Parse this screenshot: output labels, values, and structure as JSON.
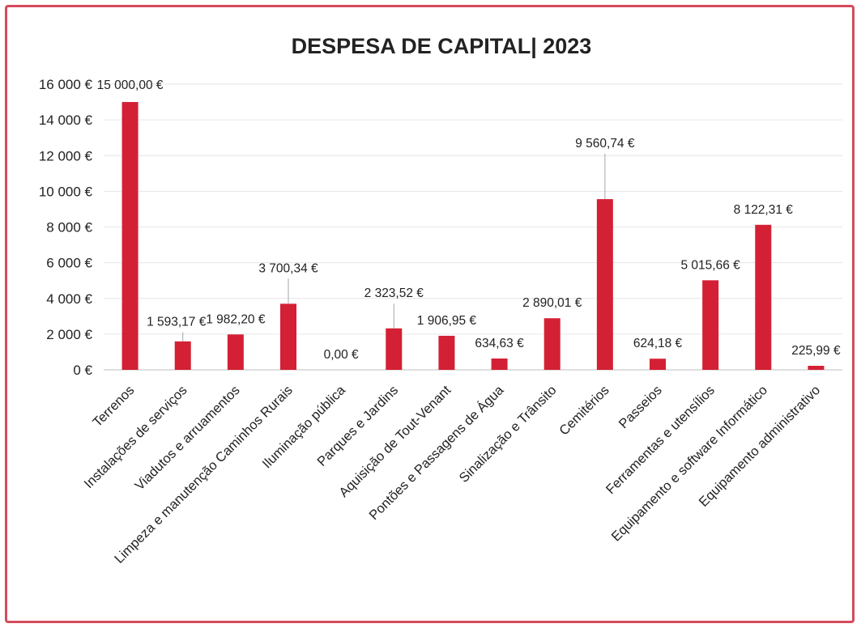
{
  "chart_data": {
    "type": "bar",
    "title": "DESPESA DE CAPITAL| 2023",
    "xlabel": "",
    "ylabel": "",
    "ylim": [
      0,
      16000
    ],
    "yticks": [
      0,
      2000,
      4000,
      6000,
      8000,
      10000,
      12000,
      14000,
      16000
    ],
    "ytick_labels": [
      "0 €",
      "2 000 €",
      "4 000 €",
      "6 000 €",
      "8 000 €",
      "10 000 €",
      "12 000 €",
      "14 000 €",
      "16 000 €"
    ],
    "grid": true,
    "legend": "none",
    "bar_color": "#d42034",
    "categories": [
      "Terrenos",
      "Instalações de serviços",
      "Viadutos e arruamentos",
      "Limpeza e manutenção Caminhos Rurais",
      "Iluminação pública",
      "Parques e Jardins",
      "Aquisição de Tout-Venant",
      "Pontões e Passagens de Água",
      "Sinalização e Trânsito",
      "Cemitérios",
      "Passeios",
      "Ferramentas e utensílios",
      "Equipamento e software Informático",
      "Equipamento administrativo"
    ],
    "values": [
      15000.0,
      1593.17,
      1982.2,
      3700.34,
      0.0,
      2323.52,
      1906.95,
      634.63,
      2890.01,
      9560.74,
      624.18,
      5015.66,
      8122.31,
      225.99
    ],
    "data_labels": [
      "15 000,00 €",
      "1 593,17 €",
      "1 982,20 €",
      "3 700,34 €",
      "0,00 €",
      "2 323,52 €",
      "1 906,95 €",
      "634,63 €",
      "2 890,01 €",
      "9 560,74 €",
      "624,18 €",
      "5 015,66 €",
      "8 122,31 €",
      "225,99 €"
    ]
  }
}
